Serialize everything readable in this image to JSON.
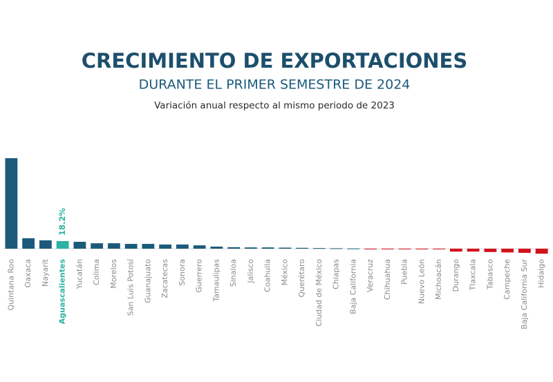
{
  "chart_data": {
    "type": "bar",
    "title": "CRECIMIENTO DE EXPORTACIONES",
    "subtitle": "DURANTE EL PRIMER SEMESTRE DE 2024",
    "description": "Variación anual respecto al mismo periodo de 2023",
    "categories": [
      "Quintana Roo",
      "Oaxaca",
      "Nayarit",
      "Aguascalientes",
      "Yucatán",
      "Colima",
      "Morelos",
      "San Luis Potosí",
      "Guanajuato",
      "Zacatecas",
      "Sonora",
      "Guerrero",
      "Tamaulipas",
      "Sinaloa",
      "Jalisco",
      "Coahuila",
      "México",
      "Querétaro",
      "Ciudad de México",
      "Chiapas",
      "Baja California",
      "Veracruz",
      "Chihuahua",
      "Puebla",
      "Nuevo León",
      "Michoacán",
      "Durango",
      "Tlaxcala",
      "Tabasco",
      "Campeche",
      "Baja California Sur",
      "Hidalgo"
    ],
    "values": [
      217,
      25,
      20,
      18.2,
      16.5,
      13,
      13,
      11.5,
      11.5,
      10,
      10,
      8,
      5,
      3.5,
      3,
      3,
      2.5,
      2,
      1.5,
      1,
      0.5,
      -0.5,
      -1,
      -1,
      -1.5,
      -1.5,
      -7,
      -7,
      -8,
      -9,
      -10,
      -12
    ],
    "value_labels": [
      null,
      null,
      null,
      "18.2%",
      null,
      null,
      null,
      null,
      null,
      null,
      null,
      null,
      null,
      null,
      null,
      null,
      null,
      null,
      null,
      null,
      null,
      null,
      null,
      null,
      null,
      null,
      null,
      null,
      null,
      null,
      null,
      null
    ],
    "colors": [
      "#1c5a7c",
      "#1c5a7c",
      "#1c5a7c",
      "#2bb3a3",
      "#1c5a7c",
      "#1c5a7c",
      "#1c5a7c",
      "#1c5a7c",
      "#1c5a7c",
      "#1c5a7c",
      "#1c5a7c",
      "#1c5a7c",
      "#1c5a7c",
      "#1c5a7c",
      "#1c5a7c",
      "#1c5a7c",
      "#1c5a7c",
      "#1c5a7c",
      "#1c5a7c",
      "#1c5a7c",
      "#1c5a7c",
      "#d3121c",
      "#d3121c",
      "#d3121c",
      "#d3121c",
      "#d3121c",
      "#d3121c",
      "#d3121c",
      "#d3121c",
      "#d3121c",
      "#d3121c",
      "#d3121c"
    ]
  }
}
